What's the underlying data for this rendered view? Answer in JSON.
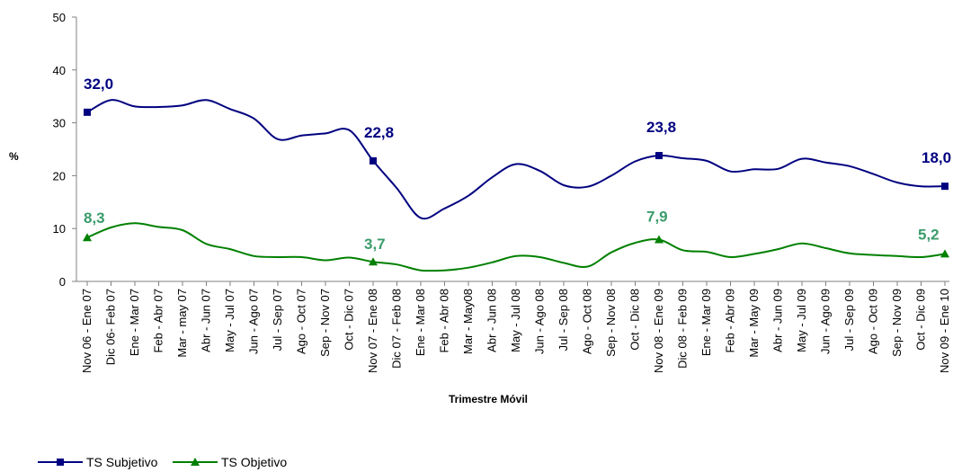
{
  "chart_data": {
    "type": "line",
    "xlabel": "Trimestre Móvil",
    "ylabel": "%",
    "ylim": [
      0,
      50
    ],
    "yticks": [
      0,
      10,
      20,
      30,
      40,
      50
    ],
    "grid": false,
    "legend_position": "bottom-left",
    "categories": [
      "Nov 06 - Ene 07",
      "Dic 06- Feb 07",
      "Ene - Mar 07",
      "Feb - Abr 07",
      "Mar - may 07",
      "Abr - Jun 07",
      "May - Jul 07",
      "Jun - Ago 07",
      "Jul - Sep 07",
      "Ago - Oct 07",
      "Sep - Nov 07",
      "Oct - Dic 07",
      "Nov 07 - Ene 08",
      "Dic 07 - Feb 08",
      "Ene - Mar 08",
      "Feb - Abr 08",
      "Mar - May08",
      "Abr - Jun 08",
      "May - Jul 08",
      "Jun - Ago 08",
      "Jul - Sep 08",
      "Ago - Oct 08",
      "Sep - Nov 08",
      "Oct - Dic 08",
      "Nov 08 - Ene 09",
      "Dic 08 - Feb 09",
      "Ene - Mar 09",
      "Feb - Abr 09",
      "Mar - May 09",
      "Abr - Jun 09",
      "May - Jul 09",
      "Jun - Ago 09",
      "Jul - Sep 09",
      "Ago - Oct 09",
      "Sep - Nov 09",
      "Oct - Dic 09",
      "Nov 09 - Ene 10"
    ],
    "series": [
      {
        "name": "TS Subjetivo",
        "color": "#000080",
        "marker": "square",
        "values": [
          32.0,
          34.3,
          33.1,
          33.0,
          33.3,
          34.3,
          32.6,
          30.8,
          26.9,
          27.6,
          28.0,
          28.6,
          22.8,
          17.6,
          12.0,
          13.8,
          16.2,
          19.7,
          22.2,
          20.9,
          18.2,
          17.9,
          20.0,
          22.7,
          23.8,
          23.3,
          22.8,
          20.8,
          21.2,
          21.3,
          23.2,
          22.5,
          21.8,
          20.3,
          18.7,
          18.0,
          18.0
        ],
        "labels": [
          {
            "index": 0,
            "text": "32,0"
          },
          {
            "index": 12,
            "text": "22,8"
          },
          {
            "index": 24,
            "text": "23,8"
          },
          {
            "index": 36,
            "text": "18,0"
          }
        ]
      },
      {
        "name": "TS Objetivo",
        "color": "#008000",
        "label_color": "#3B9C6B",
        "marker": "triangle",
        "values": [
          8.3,
          10.2,
          11.0,
          10.3,
          9.7,
          7.1,
          6.1,
          4.8,
          4.6,
          4.6,
          4.0,
          4.5,
          3.7,
          3.2,
          2.1,
          2.1,
          2.6,
          3.6,
          4.8,
          4.6,
          3.5,
          2.8,
          5.5,
          7.3,
          7.9,
          5.9,
          5.6,
          4.6,
          5.2,
          6.1,
          7.2,
          6.3,
          5.3,
          5.0,
          4.8,
          4.6,
          5.2
        ],
        "labels": [
          {
            "index": 0,
            "text": "8,3"
          },
          {
            "index": 12,
            "text": "3,7"
          },
          {
            "index": 24,
            "text": "7,9"
          },
          {
            "index": 36,
            "text": "5,2"
          }
        ]
      }
    ]
  }
}
